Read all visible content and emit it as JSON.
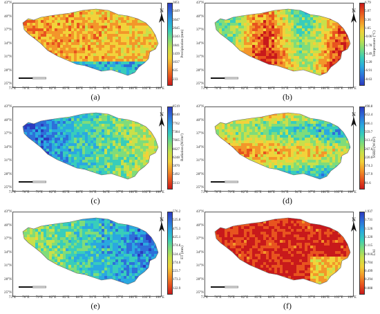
{
  "x_ticks": [
    "73°E",
    "76°E",
    "79°E",
    "82°E",
    "85°E",
    "88°E",
    "91°E",
    "94°E",
    "97°E",
    "100°E",
    "103°E",
    "106°E"
  ],
  "y_ticks": [
    "43°N",
    "40°N",
    "37°N",
    "34°N",
    "31°N",
    "28°N",
    "25°N"
  ],
  "north_label": "N",
  "panels": [
    {
      "id": "a",
      "label": "(a)",
      "legend_title": "Precipitation (mm)",
      "legend_values": [
        "3851",
        "3449",
        "3047",
        "2645",
        "2243",
        "1841",
        "1439",
        "1037",
        "635",
        "233"
      ],
      "colors": [
        "#2c3bbf",
        "#2e6fd9",
        "#2aa8e0",
        "#38cdbb",
        "#7fdc7a",
        "#c8e04a",
        "#f2d23a",
        "#f3962a",
        "#e8541f",
        "#c8191b"
      ]
    },
    {
      "id": "b",
      "label": "(b)",
      "legend_title": "Temperature (°C)",
      "legend_values": [
        "6.79",
        "5.07",
        "3.36",
        "1.65",
        "-0.06",
        "-1.78",
        "-3.49",
        "-5.20",
        "-6.91",
        "-8.63"
      ],
      "colors": [
        "#c8191b",
        "#e8541f",
        "#f3962a",
        "#f2d23a",
        "#c8e04a",
        "#7fdc7a",
        "#38cdbb",
        "#2aa8e0",
        "#2e6fd9",
        "#2c3bbf"
      ]
    },
    {
      "id": "c",
      "label": "(c)",
      "legend_title": "Radiation (MJ/m²)",
      "legend_values": [
        "8519",
        "8140",
        "7762",
        "7384",
        "7005",
        "6627",
        "6248",
        "5870",
        "5492",
        "5113"
      ],
      "colors": [
        "#2c3bbf",
        "#2e6fd9",
        "#2aa8e0",
        "#38cdbb",
        "#7fdc7a",
        "#c8e04a",
        "#f2d23a",
        "#f3962a",
        "#e8541f",
        "#c8191b"
      ]
    },
    {
      "id": "d",
      "label": "(d)",
      "legend_title": "SSRD (W/m²)",
      "legend_values": [
        "498.8",
        "452.4",
        "406.1",
        "359.7",
        "313.4",
        "267.0",
        "220.6",
        "174.3",
        "127.9",
        "81.6"
      ],
      "colors": [
        "#2c3bbf",
        "#2e6fd9",
        "#2aa8e0",
        "#38cdbb",
        "#7fdc7a",
        "#c8e04a",
        "#f2d23a",
        "#f3962a",
        "#e8541f",
        "#c8191b"
      ]
    },
    {
      "id": "e",
      "label": "(e)",
      "legend_title": "ET (mm)",
      "legend_values": [
        "576.2",
        "525.8",
        "475.3",
        "425.1",
        "374.8",
        "324.4",
        "274.0",
        "223.7",
        "173.3",
        "122.9"
      ],
      "colors": [
        "#2c3bbf",
        "#2e6fd9",
        "#2aa8e0",
        "#38cdbb",
        "#7fdc7a",
        "#c8e04a",
        "#f2d23a",
        "#f3962a",
        "#e8541f",
        "#c8191b"
      ]
    },
    {
      "id": "f",
      "label": "(f)",
      "legend_title": "LAI",
      "legend_values": [
        "1.937",
        "1.731",
        "1.526",
        "1.320",
        "1.115",
        "0.910",
        "0.704",
        "0.499",
        "0.294",
        "0.088"
      ],
      "colors": [
        "#2c3bbf",
        "#2e6fd9",
        "#2aa8e0",
        "#38cdbb",
        "#7fdc7a",
        "#c8e04a",
        "#f2d23a",
        "#f3962a",
        "#e8541f",
        "#c8191b"
      ]
    }
  ]
}
